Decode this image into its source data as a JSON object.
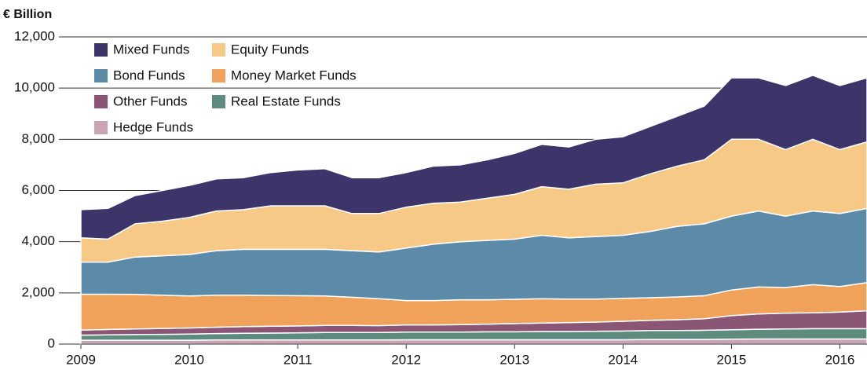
{
  "chart_data": {
    "type": "stacked_area",
    "y_label": "€ Billion",
    "x": [
      2009.0,
      2009.25,
      2009.5,
      2009.75,
      2010.0,
      2010.25,
      2010.5,
      2010.75,
      2011.0,
      2011.25,
      2011.5,
      2011.75,
      2012.0,
      2012.25,
      2012.5,
      2012.75,
      2013.0,
      2013.25,
      2013.5,
      2013.75,
      2014.0,
      2014.25,
      2014.5,
      2014.75,
      2015.0,
      2015.25,
      2015.5,
      2015.75,
      2016.0,
      2016.25
    ],
    "xlim": [
      2009,
      2016.25
    ],
    "xticks": [
      2009,
      2010,
      2011,
      2012,
      2013,
      2014,
      2015,
      2016
    ],
    "ylim": [
      0,
      12000
    ],
    "yticks": [
      0,
      {
        "value": 2000,
        "label": "2,000"
      },
      {
        "value": 4000,
        "label": "4,000"
      },
      {
        "value": 6000,
        "label": "6,000"
      },
      {
        "value": 8000,
        "label": "8,000"
      },
      {
        "value": 10000,
        "label": "10,000"
      },
      {
        "value": 12000,
        "label": "12,000"
      }
    ],
    "grid": true,
    "legend": "top-left",
    "series": [
      {
        "name": "Mixed Funds",
        "color": "#3d3469",
        "values": [
          1100,
          1200,
          1100,
          1200,
          1250,
          1250,
          1250,
          1300,
          1400,
          1450,
          1400,
          1400,
          1350,
          1450,
          1450,
          1500,
          1600,
          1650,
          1650,
          1750,
          1800,
          1850,
          1950,
          2100,
          2400,
          2400,
          2500,
          2500,
          2500,
          2500
        ]
      },
      {
        "name": "Equity Funds",
        "color": "#f7c987",
        "values": [
          950,
          900,
          1300,
          1350,
          1450,
          1550,
          1550,
          1700,
          1700,
          1700,
          1450,
          1500,
          1600,
          1600,
          1550,
          1650,
          1750,
          1900,
          1900,
          2050,
          2050,
          2250,
          2350,
          2500,
          3000,
          2800,
          2600,
          2800,
          2500,
          2600
        ]
      },
      {
        "name": "Bond Funds",
        "color": "#5b8ba8",
        "values": [
          1250,
          1250,
          1460,
          1540,
          1620,
          1740,
          1790,
          1800,
          1810,
          1820,
          1820,
          1830,
          2050,
          2200,
          2270,
          2320,
          2350,
          2480,
          2390,
          2440,
          2460,
          2590,
          2760,
          2810,
          2890,
          2970,
          2790,
          2880,
          2850,
          2900
        ]
      },
      {
        "name": "Money Market Funds",
        "color": "#f0a25a",
        "values": [
          1400,
          1380,
          1350,
          1300,
          1250,
          1250,
          1230,
          1200,
          1180,
          1150,
          1100,
          1050,
          950,
          950,
          970,
          950,
          950,
          950,
          920,
          900,
          900,
          880,
          890,
          900,
          1000,
          1050,
          1000,
          1100,
          1000,
          1100
        ]
      },
      {
        "name": "Other Funds",
        "color": "#8b5675",
        "values": [
          200,
          210,
          220,
          230,
          240,
          250,
          260,
          270,
          270,
          280,
          280,
          270,
          280,
          280,
          290,
          300,
          320,
          330,
          350,
          360,
          380,
          400,
          420,
          450,
          550,
          600,
          620,
          620,
          650,
          700
        ]
      },
      {
        "name": "Real Estate Funds",
        "color": "#5d8c7e",
        "values": [
          200,
          210,
          220,
          230,
          240,
          250,
          260,
          270,
          280,
          290,
          290,
          290,
          300,
          300,
          300,
          310,
          310,
          320,
          320,
          330,
          340,
          350,
          350,
          360,
          370,
          380,
          390,
          400,
          400,
          400
        ]
      },
      {
        "name": "Hedge Funds",
        "color": "#c9a5b4",
        "values": [
          150,
          150,
          150,
          150,
          150,
          160,
          160,
          160,
          160,
          160,
          160,
          160,
          170,
          170,
          170,
          170,
          170,
          170,
          170,
          170,
          170,
          180,
          180,
          180,
          190,
          200,
          200,
          200,
          200,
          200
        ]
      }
    ]
  }
}
